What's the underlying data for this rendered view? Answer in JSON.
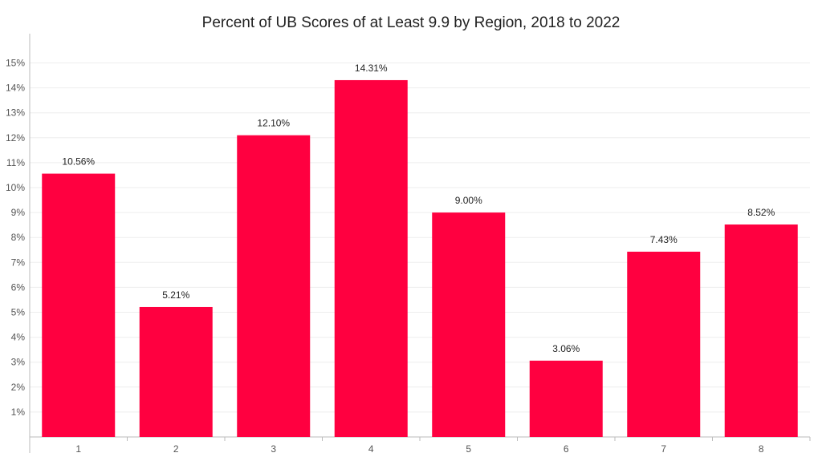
{
  "chart_data": {
    "type": "bar",
    "title": "Percent of UB Scores of at Least 9.9 by Region, 2018 to 2022",
    "xlabel": "",
    "ylabel": "",
    "categories": [
      "1",
      "2",
      "3",
      "4",
      "5",
      "6",
      "7",
      "8"
    ],
    "values": [
      10.56,
      5.21,
      12.1,
      14.31,
      9.0,
      3.06,
      7.43,
      8.52
    ],
    "data_labels": [
      "10.56%",
      "5.21%",
      "12.10%",
      "14.31%",
      "9.00%",
      "3.06%",
      "7.43%",
      "8.52%"
    ],
    "ylim": [
      0,
      15
    ],
    "yticks": [
      1,
      2,
      3,
      4,
      5,
      6,
      7,
      8,
      9,
      10,
      11,
      12,
      13,
      14,
      15
    ],
    "ytick_labels": [
      "1%",
      "2%",
      "3%",
      "4%",
      "5%",
      "6%",
      "7%",
      "8%",
      "9%",
      "10%",
      "11%",
      "12%",
      "13%",
      "14%",
      "15%"
    ],
    "grid": true,
    "legend": "none",
    "bar_color": "#FF0040",
    "grid_color": "#EEEEEE",
    "axis_color": "#BBBBBB"
  }
}
